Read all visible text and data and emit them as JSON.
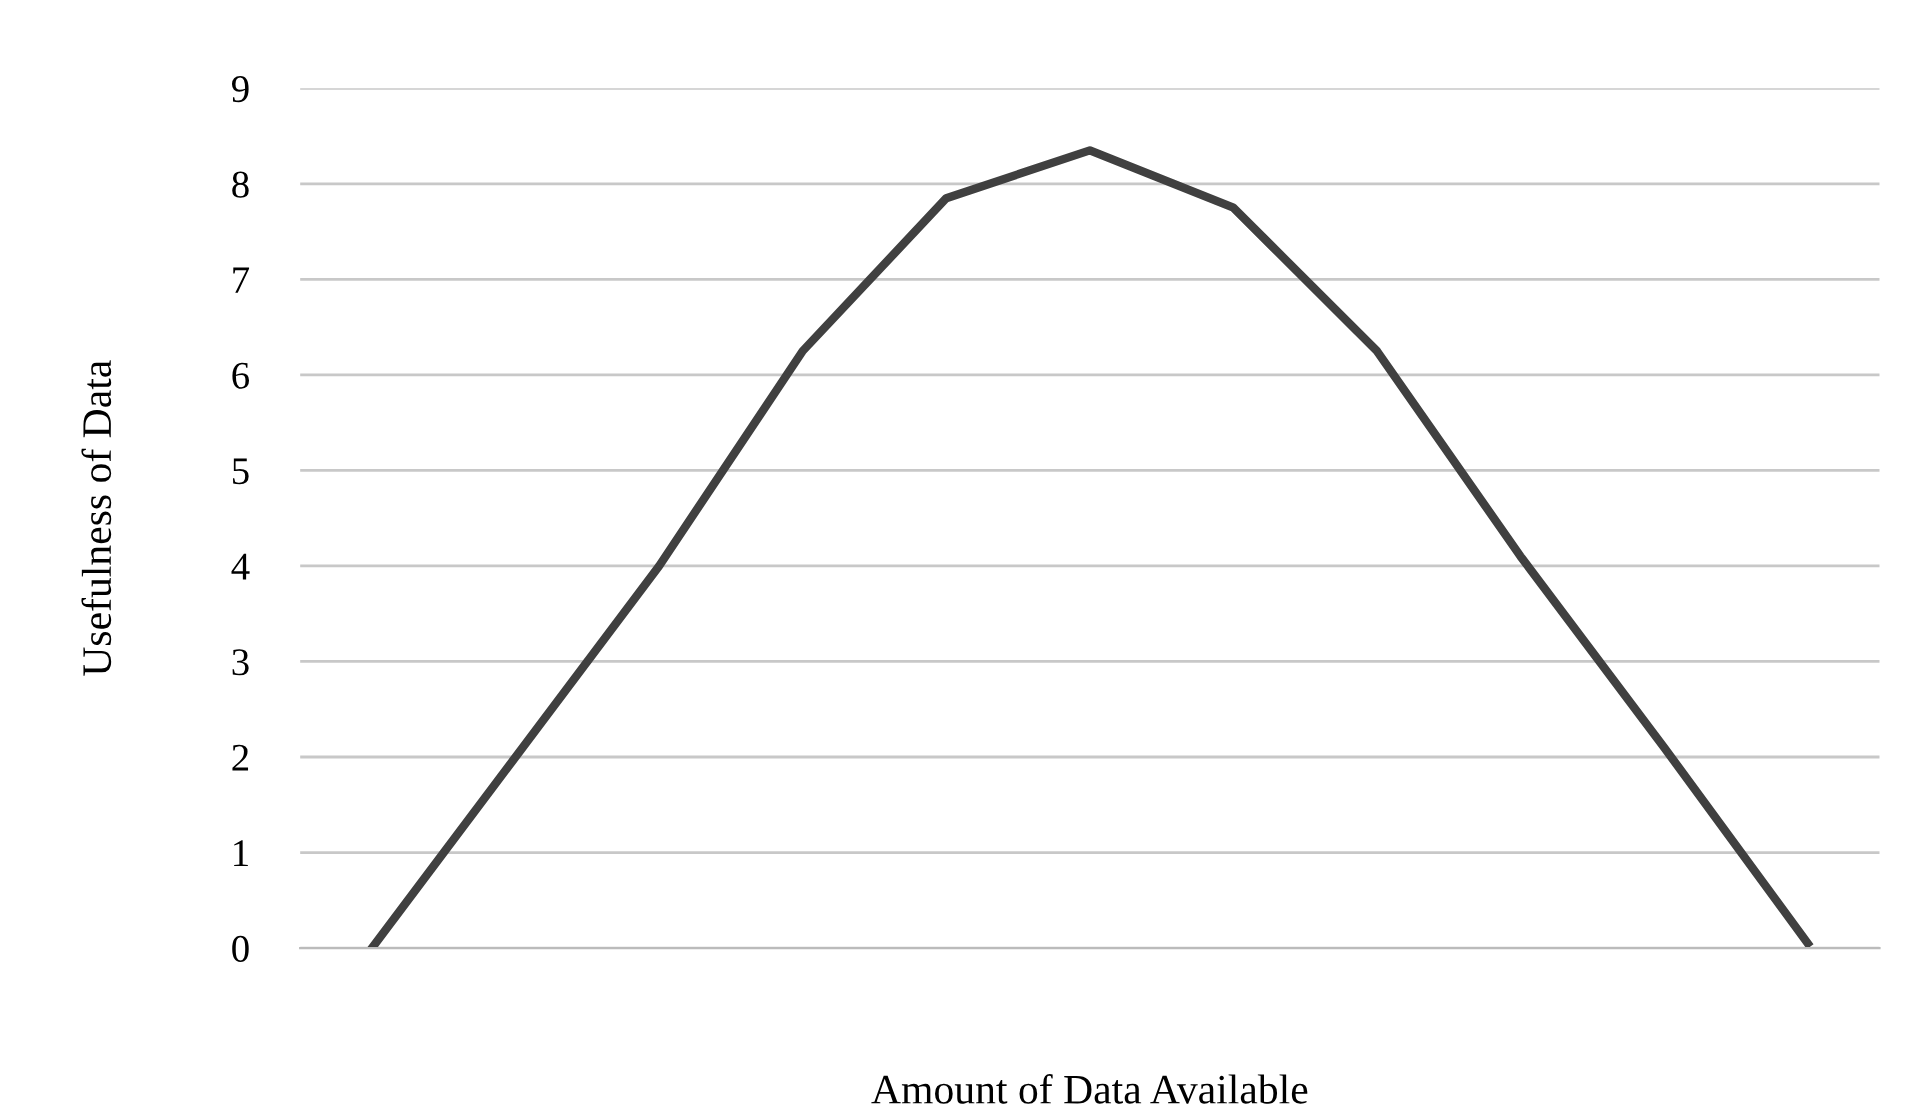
{
  "chart_data": {
    "type": "line",
    "xlabel": "Amount of Data Available",
    "ylabel": "Usefulness of Data",
    "categories": [
      null,
      null,
      null,
      null,
      null,
      null,
      null,
      null,
      null,
      null,
      null
    ],
    "series": [
      {
        "color": "#404040",
        "values": [
          0,
          2.0,
          4.0,
          6.25,
          7.85,
          8.35,
          7.75,
          6.25,
          4.1,
          2.1,
          0.05
        ]
      }
    ],
    "ylim": [
      0,
      9
    ],
    "yticks": [
      0,
      1,
      2,
      3,
      4,
      5,
      6,
      7,
      8,
      9
    ],
    "grid": "y",
    "marker": "none",
    "line_style": "solid"
  }
}
